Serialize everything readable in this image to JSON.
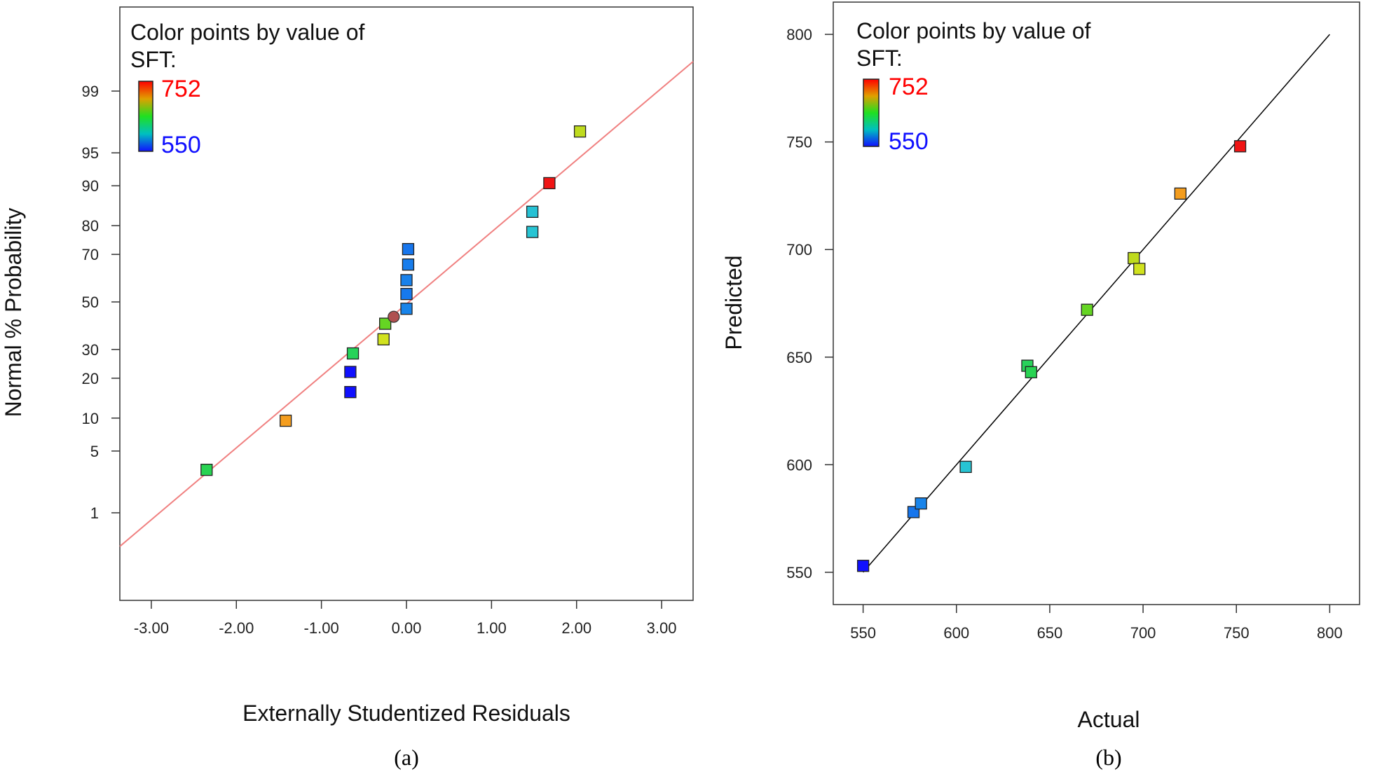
{
  "chart_data": [
    {
      "type": "scatter",
      "panel_caption": "(a)",
      "xlabel": "Externally Studentized Residuals",
      "ylabel": "Normal % Probability",
      "xlim": [
        -3.37,
        3.37
      ],
      "x_ticks": [
        "-3.00",
        "-2.00",
        "-1.00",
        "0.00",
        "1.00",
        "2.00",
        "3.00"
      ],
      "x_tick_values": [
        -3,
        -2,
        -1,
        0,
        1,
        2,
        3
      ],
      "y_scale": "normal-probability",
      "y_ticks": [
        "1",
        "5",
        "10",
        "20",
        "30",
        "50",
        "70",
        "80",
        "90",
        "95",
        "99"
      ],
      "y_tick_values": [
        1,
        5,
        10,
        20,
        30,
        50,
        70,
        80,
        90,
        95,
        99
      ],
      "reference_line": {
        "color": "#f08080",
        "x": [
          -3.37,
          3.37
        ],
        "y_prob": [
          0.35,
          99.6
        ]
      },
      "legend": {
        "title_line1": "Color points by value of",
        "title_line2": "SFT:",
        "max_label": "752",
        "min_label": "550",
        "max_color": "#ff0000",
        "min_color": "#1010ff"
      },
      "points": [
        {
          "x": -2.35,
          "y": 3.2,
          "sft": 640
        },
        {
          "x": -1.42,
          "y": 9.5,
          "sft": 720
        },
        {
          "x": -0.66,
          "y": 16,
          "sft": 550
        },
        {
          "x": -0.66,
          "y": 22,
          "sft": 550
        },
        {
          "x": -0.63,
          "y": 28.5,
          "sft": 638
        },
        {
          "x": -0.27,
          "y": 34,
          "sft": 698
        },
        {
          "x": -0.25,
          "y": 40.5,
          "sft": 670
        },
        {
          "x": -0.15,
          "y": 43.5,
          "sft": 690,
          "marker": "circle",
          "color": "#b05050"
        },
        {
          "x": 0.0,
          "y": 47,
          "sft": 581
        },
        {
          "x": 0.0,
          "y": 53.5,
          "sft": 578
        },
        {
          "x": 0.0,
          "y": 59.5,
          "sft": 580
        },
        {
          "x": 0.02,
          "y": 66,
          "sft": 579
        },
        {
          "x": 0.02,
          "y": 72,
          "sft": 577
        },
        {
          "x": 1.48,
          "y": 78,
          "sft": 605
        },
        {
          "x": 1.48,
          "y": 84,
          "sft": 604
        },
        {
          "x": 1.68,
          "y": 90.5,
          "sft": 752
        },
        {
          "x": 2.04,
          "y": 97,
          "sft": 695
        }
      ]
    },
    {
      "type": "scatter",
      "panel_caption": "(b)",
      "xlabel": "Actual",
      "ylabel": "Predicted",
      "xlim": [
        534,
        816
      ],
      "ylim": [
        535,
        815
      ],
      "x_ticks": [
        "550",
        "600",
        "650",
        "700",
        "750",
        "800"
      ],
      "x_tick_values": [
        550,
        600,
        650,
        700,
        750,
        800
      ],
      "y_ticks": [
        "550",
        "600",
        "650",
        "700",
        "750",
        "800"
      ],
      "y_tick_values": [
        550,
        600,
        650,
        700,
        750,
        800
      ],
      "reference_line": {
        "color": "#000000",
        "x": [
          550,
          800
        ],
        "y": [
          550,
          800
        ]
      },
      "legend": {
        "title_line1": "Color points by value of",
        "title_line2": "SFT:",
        "max_label": "752",
        "min_label": "550",
        "max_color": "#ff0000",
        "min_color": "#1010ff"
      },
      "points": [
        {
          "x": 550,
          "y": 553,
          "sft": 550
        },
        {
          "x": 577,
          "y": 578,
          "sft": 577
        },
        {
          "x": 581,
          "y": 582,
          "sft": 581
        },
        {
          "x": 605,
          "y": 599,
          "sft": 605
        },
        {
          "x": 638,
          "y": 646,
          "sft": 638
        },
        {
          "x": 640,
          "y": 643,
          "sft": 640
        },
        {
          "x": 670,
          "y": 672,
          "sft": 670
        },
        {
          "x": 695,
          "y": 696,
          "sft": 695
        },
        {
          "x": 698,
          "y": 691,
          "sft": 698
        },
        {
          "x": 720,
          "y": 726,
          "sft": 720
        },
        {
          "x": 752,
          "y": 748,
          "sft": 752
        }
      ]
    }
  ]
}
